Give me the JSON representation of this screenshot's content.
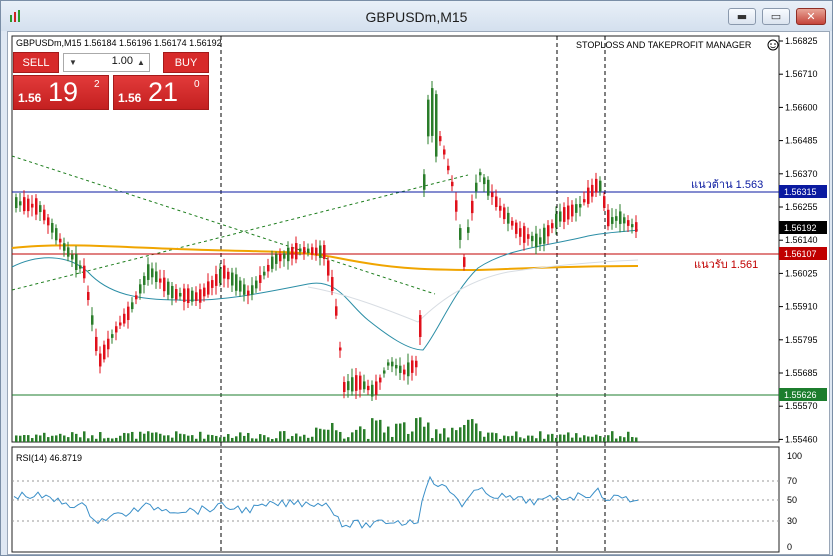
{
  "window": {
    "title": "GBPUSDm,M15",
    "controls": {
      "minimize": "▬",
      "maximize": "▭",
      "close": "✕"
    }
  },
  "chart": {
    "header": "GBPUSDm,M15  1.56184 1.56196 1.56174 1.56192",
    "manager_label": "STOPLOSS AND TAKEPROFIT MANAGER",
    "resistance_label": "แนวต้าน 1.563",
    "support_label": "แนวรับ 1.561",
    "price_ticks": [
      "1.56825",
      "1.56710",
      "1.56600",
      "1.56485",
      "1.56370",
      "1.56255",
      "1.56140",
      "1.56025",
      "1.55910",
      "1.55795",
      "1.55685",
      "1.55570",
      "1.55460"
    ],
    "price_tags": {
      "resistance": "1.56315",
      "current": "1.56192",
      "support": "1.56107",
      "low": "1.55626"
    },
    "colors": {
      "bull": "#2a7d2a",
      "bear": "#e0101b",
      "ma_orange": "#f0a500",
      "ma_teal": "#2b8ea6",
      "resistance_line": "#0a1aa0",
      "support_line": "#c00000",
      "low_line": "#1c7d2d"
    }
  },
  "trade_panel": {
    "sell_label": "SELL",
    "buy_label": "BUY",
    "lot": "1.00",
    "sell_price": {
      "prefix": "1.56",
      "big": "19",
      "sup": "2"
    },
    "buy_price": {
      "prefix": "1.56",
      "big": "21",
      "sup": "0"
    }
  },
  "rsi": {
    "header": "RSI(14) 46.8719",
    "ticks": [
      "100",
      "70",
      "50",
      "30",
      "0"
    ]
  }
}
